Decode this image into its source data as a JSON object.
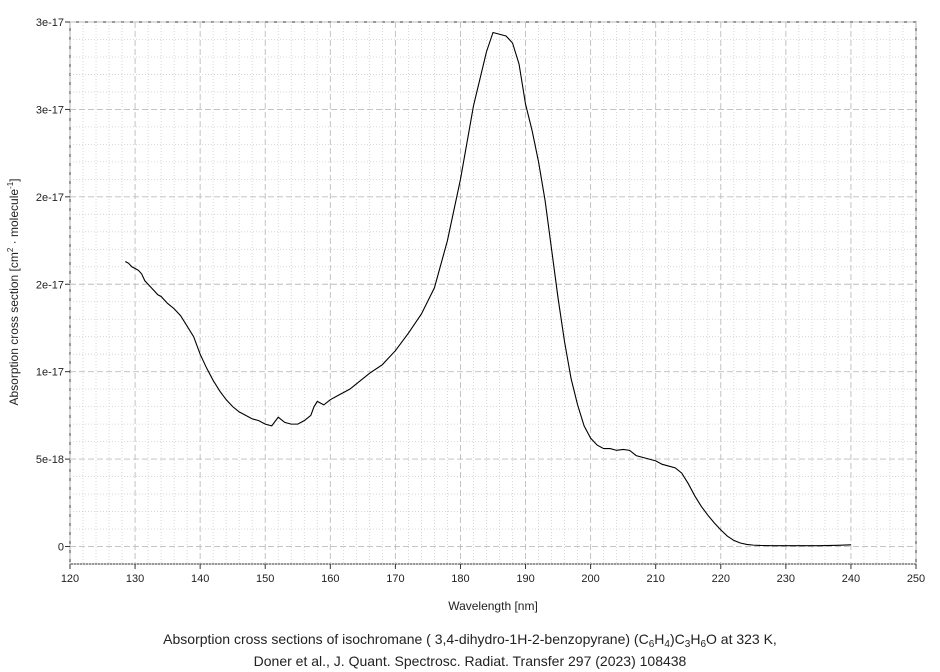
{
  "chart_data": {
    "type": "line",
    "xlabel": "Wavelength [nm]",
    "ylabel": "Absorption cross section [cm",
    "ylabel_sup1": "2",
    "ylabel_mid": " · molecule",
    "ylabel_sup2": "-1",
    "ylabel_end": "]",
    "xlim": [
      120,
      250
    ],
    "ylim": [
      -1e-18,
      3e-17
    ],
    "x_ticks": [
      120,
      130,
      140,
      150,
      160,
      170,
      180,
      190,
      200,
      210,
      220,
      230,
      240,
      250
    ],
    "y_ticks": [
      {
        "value": 0,
        "label": "0"
      },
      {
        "value": 5e-18,
        "label": "5e-18"
      },
      {
        "value": 1e-17,
        "label": "1e-17"
      },
      {
        "value": 1.5e-17,
        "label": "2e-17"
      },
      {
        "value": 2e-17,
        "label": "2e-17"
      },
      {
        "value": 2.5e-17,
        "label": "3e-17"
      },
      {
        "value": 3e-17,
        "label": "3e-17"
      }
    ],
    "grid": true,
    "color": "#000000",
    "series": [
      {
        "x": [
          128.5,
          129,
          129.5,
          130,
          130.5,
          131,
          131.5,
          132,
          132.5,
          133,
          133.5,
          134,
          135,
          136,
          137,
          138,
          139,
          140,
          141,
          142,
          143,
          144,
          145,
          146,
          147,
          148,
          149,
          150,
          151,
          152,
          153,
          154,
          155,
          156,
          157,
          157.5,
          158,
          159,
          160,
          161,
          162,
          163,
          164,
          165,
          166,
          168,
          170,
          172,
          174,
          176,
          178,
          180,
          182,
          184,
          185,
          186,
          187,
          188,
          189,
          190,
          191,
          192,
          193,
          194,
          195,
          196,
          197,
          198,
          199,
          200,
          201,
          202,
          203,
          204,
          205,
          206,
          207,
          208,
          209,
          210,
          211,
          212,
          213,
          214,
          215,
          216,
          217,
          218,
          219,
          220,
          221,
          222,
          223,
          224,
          225,
          226,
          228,
          230,
          232,
          235,
          238,
          240
        ],
        "y": [
          1.63e-17,
          1.62e-17,
          1.6e-17,
          1.59e-17,
          1.58e-17,
          1.56e-17,
          1.52e-17,
          1.5e-17,
          1.48e-17,
          1.46e-17,
          1.44e-17,
          1.43e-17,
          1.39e-17,
          1.36e-17,
          1.32e-17,
          1.26e-17,
          1.2e-17,
          1.1e-17,
          1.02e-17,
          9.5e-18,
          8.9e-18,
          8.4e-18,
          8e-18,
          7.7e-18,
          7.5e-18,
          7.3e-18,
          7.2e-18,
          7e-18,
          6.9e-18,
          7.4e-18,
          7.1e-18,
          7e-18,
          7e-18,
          7.2e-18,
          7.5e-18,
          8e-18,
          8.3e-18,
          8.1e-18,
          8.4e-18,
          8.6e-18,
          8.8e-18,
          9e-18,
          9.3e-18,
          9.6e-18,
          9.9e-18,
          1.04e-17,
          1.12e-17,
          1.22e-17,
          1.33e-17,
          1.48e-17,
          1.75e-17,
          2.1e-17,
          2.52e-17,
          2.83e-17,
          2.94e-17,
          2.93e-17,
          2.92e-17,
          2.88e-17,
          2.76e-17,
          2.53e-17,
          2.38e-17,
          2.2e-17,
          1.98e-17,
          1.7e-17,
          1.42e-17,
          1.17e-17,
          9.6e-18,
          8.1e-18,
          6.9e-18,
          6.2e-18,
          5.8e-18,
          5.6e-18,
          5.6e-18,
          5.5e-18,
          5.55e-18,
          5.5e-18,
          5.2e-18,
          5.1e-18,
          5e-18,
          4.9e-18,
          4.7e-18,
          4.6e-18,
          4.5e-18,
          4.2e-18,
          3.6e-18,
          2.9e-18,
          2.3e-18,
          1.8e-18,
          1.35e-18,
          9.5e-19,
          6e-19,
          3.5e-19,
          2e-19,
          1.2e-19,
          8e-20,
          6e-20,
          5e-20,
          5e-20,
          5e-20,
          5e-20,
          7e-20,
          1e-19
        ]
      }
    ]
  },
  "caption": {
    "line1_a": "Absorption cross sections of isochromane ( 3,4-dihydro-1H-2-benzopyrane) (C",
    "sub1": "6",
    "mid1": "H",
    "sub2": "4",
    "mid2": ")C",
    "sub3": "3",
    "mid3": "H",
    "sub4": "6",
    "line1_b": "O at 323 K,",
    "line2": "Doner et al., J. Quant. Spectrosc. Radiat. Transfer 297 (2023) 108438"
  }
}
